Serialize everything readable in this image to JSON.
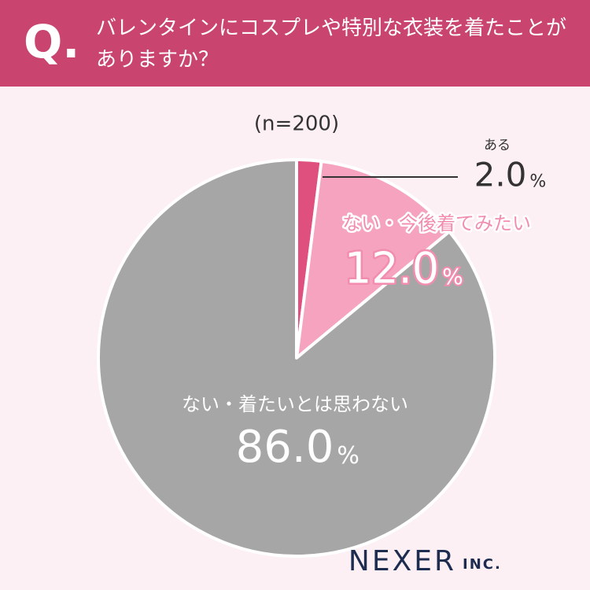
{
  "header": {
    "mark": "Q.",
    "question": "バレンタインにコスプレや特別な衣装を着たことがありますか？"
  },
  "chart_data": {
    "type": "pie",
    "subtitle": "(n=200)",
    "categories": [
      "ある",
      "ない・今後着てみたい",
      "ない・着たいとは思わない"
    ],
    "values": [
      2,
      12,
      86
    ],
    "value_labels": [
      "2.0",
      "12.0",
      "86.0"
    ],
    "unit": "%",
    "colors": [
      "#e0507e",
      "#f5a3bf",
      "#a6a6a6"
    ]
  },
  "logo": {
    "name": "NEXER",
    "suffix": "INC."
  }
}
